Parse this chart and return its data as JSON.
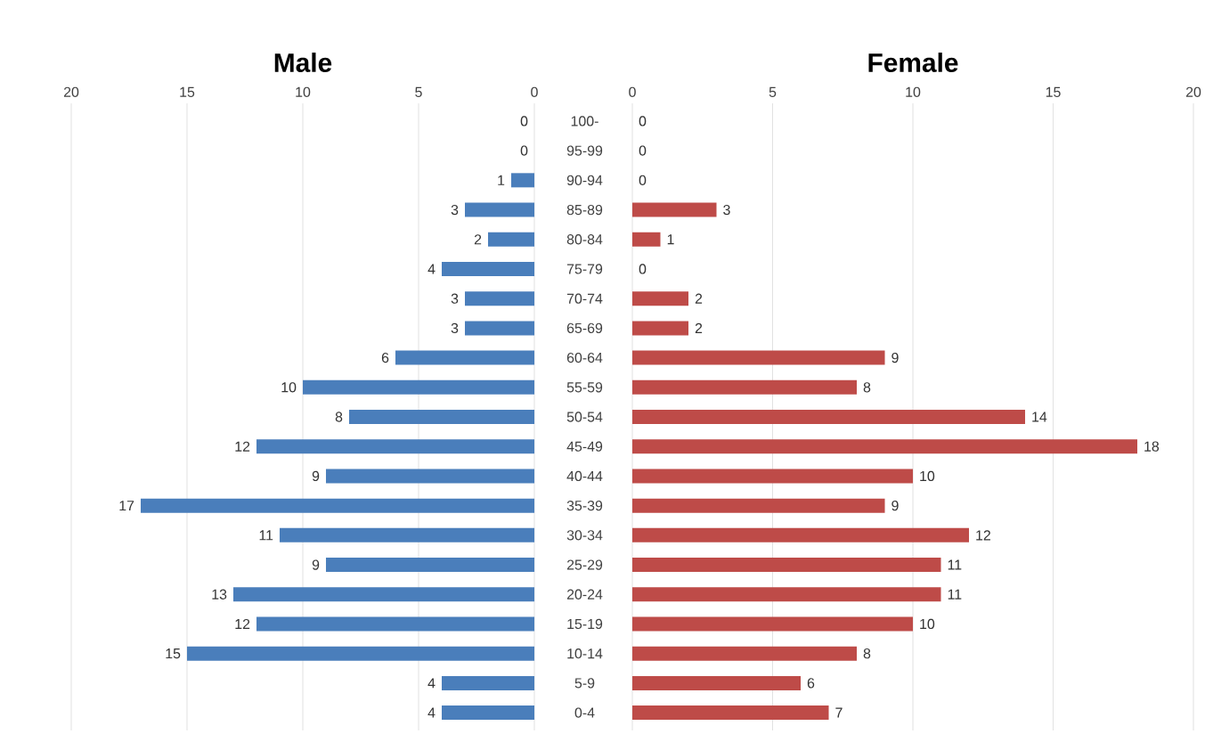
{
  "chart_data": [
    {
      "type": "bar",
      "orientation": "horizontal",
      "title": "Male",
      "categories": [
        "100-",
        "95-99",
        "90-94",
        "85-89",
        "80-84",
        "75-79",
        "70-74",
        "65-69",
        "60-64",
        "55-59",
        "50-54",
        "45-49",
        "40-44",
        "35-39",
        "30-34",
        "25-29",
        "20-24",
        "15-19",
        "10-14",
        "5-9",
        "0-4"
      ],
      "values": [
        0,
        0,
        1,
        3,
        2,
        4,
        3,
        3,
        6,
        10,
        8,
        12,
        9,
        17,
        11,
        9,
        13,
        12,
        15,
        4,
        4
      ],
      "color": "#4a7ebb",
      "xlim": [
        20,
        0
      ],
      "xticks": [
        20,
        15,
        10,
        5,
        0
      ],
      "grid": "x",
      "data_labels": true
    },
    {
      "type": "bar",
      "orientation": "horizontal",
      "title": "Female",
      "categories": [
        null,
        null,
        null,
        null,
        null,
        null,
        null,
        null,
        null,
        null,
        null,
        null,
        null,
        null,
        null,
        null,
        null,
        null,
        null,
        null,
        null
      ],
      "values": [
        0,
        0,
        0,
        3,
        1,
        0,
        2,
        2,
        9,
        8,
        14,
        18,
        10,
        9,
        12,
        11,
        11,
        10,
        8,
        6,
        7
      ],
      "color": "#be4b48",
      "xlim": [
        0,
        20
      ],
      "xticks": [
        0,
        5,
        10,
        15,
        20
      ],
      "grid": "x",
      "data_labels": true
    }
  ]
}
